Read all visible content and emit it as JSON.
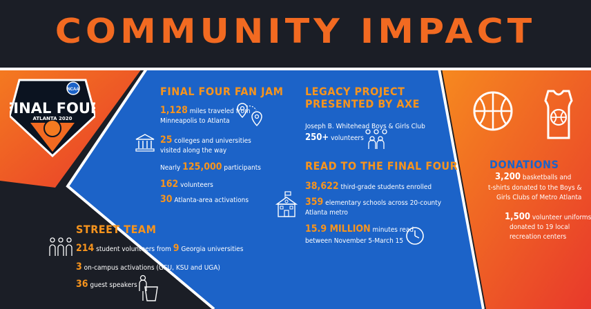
{
  "title": "COMMUNITY IMPACT",
  "logo": {
    "badge": "NCAA",
    "line1": "FINAL FOUR",
    "line2": "ATLANTA 2020"
  },
  "fan_jam": {
    "heading": "FINAL FOUR FAN JAM",
    "miles_num": "1,128",
    "miles_text": "miles traveled from",
    "miles_text2": "Minneapolis to Atlanta",
    "colleges_num": "25",
    "colleges_text": "colleges and universities",
    "colleges_text2": "visited along the way",
    "participants_pre": "Nearly",
    "participants_num": "125,000",
    "participants_post": "participants",
    "volunteers_num": "162",
    "volunteers_text": "volunteers",
    "activations_num": "30",
    "activations_text": "Atlanta-area activations"
  },
  "legacy": {
    "heading1": "LEGACY PROJECT",
    "heading2": "PRESENTED BY AXE",
    "club": "Joseph B. Whitehead Boys & Girls Club",
    "vol_num": "250+",
    "vol_text": "volunteers"
  },
  "read": {
    "heading": "READ TO THE FINAL FOUR",
    "students_num": "38,622",
    "students_text": "third-grade students enrolled",
    "schools_num": "359",
    "schools_text": "elementary schools across 20-county",
    "schools_text2": "Atlanta metro",
    "minutes_num": "15.9 MILLION",
    "minutes_text": "minutes read",
    "minutes_text2": "between November 5-March 15"
  },
  "donations": {
    "heading": "DONATIONS",
    "balls_num": "3,200",
    "balls_text": "basketballs and",
    "balls_text2": "t-shirts donated to the Boys &",
    "balls_text3": "Girls Clubs of Metro Atlanta",
    "uniforms_num": "1,500",
    "uniforms_text": "volunteer uniforms",
    "uniforms_text2": "donated to 19 local",
    "uniforms_text3": "recreation centers"
  },
  "street": {
    "heading": "STREET TEAM",
    "students_num": "214",
    "students_text": "student volunteers from",
    "univ_num": "9",
    "univ_text": "Georgia universities",
    "campus_num": "3",
    "campus_text": "on-campus activations (GSU, KSU and UGA)",
    "speakers_num": "36",
    "speakers_text": "guest speakers"
  },
  "colors": {
    "orange": "#f26a21",
    "blue": "#1a5fc7",
    "dark": "#1b1e26",
    "accent": "#f7941d"
  }
}
